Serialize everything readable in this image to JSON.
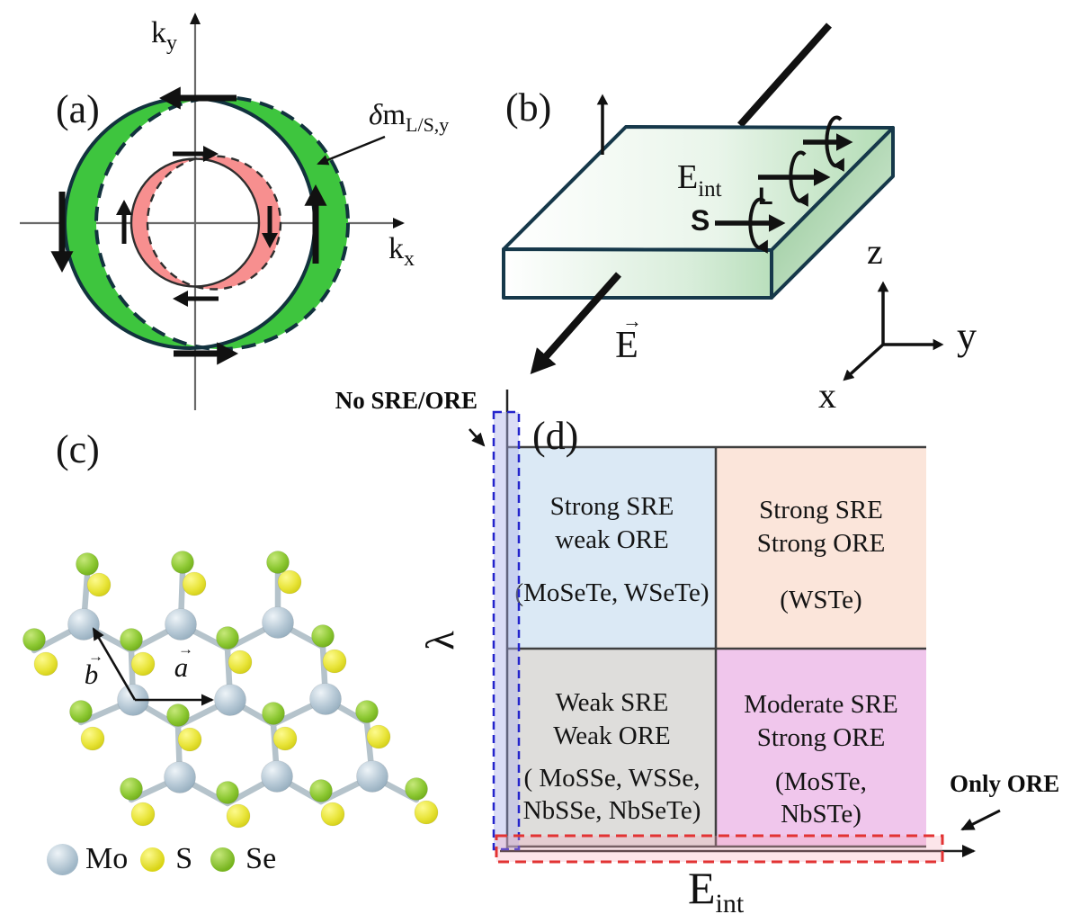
{
  "panel_a": {
    "label": "(a)",
    "axis_y_main": "k",
    "axis_y_sub": "y",
    "axis_x_main": "k",
    "axis_x_sub": "x",
    "annotation_delta": "δ",
    "annotation_main": "m",
    "annotation_sub": "L/S,y",
    "colors": {
      "outer_band": "#3ec53e",
      "inner_band": "#f78f8f",
      "outer_contour": "#12323e",
      "inner_contour": "#2e2e2e",
      "axis": "#6a6a6a",
      "arrow": "#111111"
    }
  },
  "panel_b": {
    "label": "(b)",
    "field_internal_main": "E",
    "field_internal_sub": "int",
    "spin_label": "S",
    "orbital_label": "L",
    "field_external_main": "E",
    "field_external_arrow": "→",
    "axis_z": "z",
    "axis_y": "y",
    "axis_x": "x",
    "colors": {
      "slab_edge": "#16384a",
      "slab_green": "#b2dcb4",
      "slab_green_dark": "#8fc492",
      "arrow": "#111111"
    }
  },
  "panel_c": {
    "label": "(c)",
    "vector_a": "a",
    "vector_b": "b",
    "vector_arrow": "→",
    "legend": [
      {
        "element": "Mo",
        "color_base": "#9fb6c6",
        "color_hi": "#eef4f8"
      },
      {
        "element": "S",
        "color_base": "#d9d414",
        "color_hi": "#fdfa8e"
      },
      {
        "element": "Se",
        "color_base": "#76b41e",
        "color_hi": "#c6e87a"
      }
    ],
    "colors": {
      "bond": "#b5c3cb"
    }
  },
  "panel_d": {
    "label": "(d)",
    "axis_y_label": "λ",
    "axis_x_main": "E",
    "axis_x_sub": "int",
    "annotation_no_sre": "No SRE/ORE",
    "annotation_only_ore": "Only ORE",
    "colors": {
      "blue_box": "#2424cc",
      "red_box": "#e23333",
      "axis": "#222222",
      "divider": "#3f3f3f"
    },
    "quadrants": [
      {
        "position": "top-left",
        "color": "#dbe9f5",
        "lines": [
          "Strong SRE",
          "weak ORE"
        ],
        "materials": [
          "(MoSeTe, WSeTe)"
        ]
      },
      {
        "position": "top-right",
        "color": "#fbe5da",
        "lines": [
          "Strong SRE",
          "Strong ORE"
        ],
        "materials": [
          "(WSTe)"
        ]
      },
      {
        "position": "bottom-left",
        "color": "#dedddb",
        "lines": [
          "Weak SRE",
          "Weak ORE"
        ],
        "materials": [
          "( MoSSe, WSSe,",
          "NbSSe, NbSeTe)"
        ]
      },
      {
        "position": "bottom-right",
        "color": "#f0c6ec",
        "lines": [
          "Moderate SRE",
          "Strong ORE"
        ],
        "materials": [
          "(MoSTe,",
          "NbSTe)"
        ]
      }
    ]
  }
}
